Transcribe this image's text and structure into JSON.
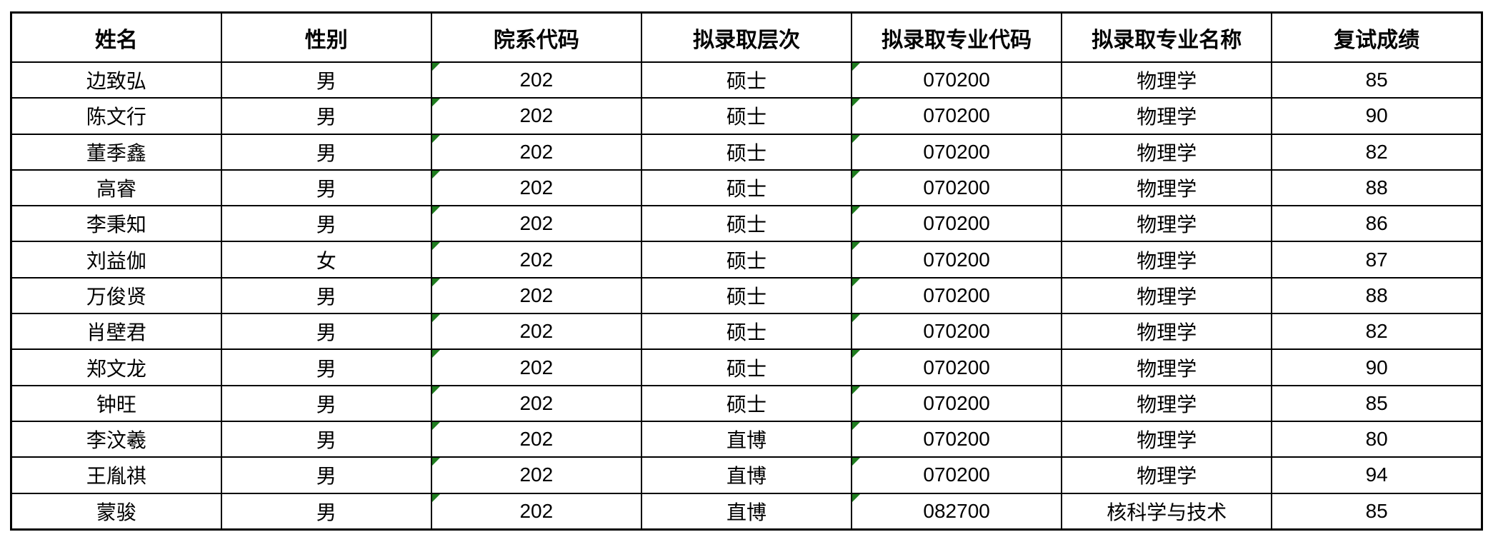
{
  "table": {
    "columns": [
      {
        "key": "name",
        "label": "姓名"
      },
      {
        "key": "gender",
        "label": "性别"
      },
      {
        "key": "dept_code",
        "label": "院系代码"
      },
      {
        "key": "level",
        "label": "拟录取层次"
      },
      {
        "key": "major_code",
        "label": "拟录取专业代码"
      },
      {
        "key": "major_name",
        "label": "拟录取专业名称"
      },
      {
        "key": "score",
        "label": "复试成绩"
      }
    ],
    "rows": [
      [
        "边致弘",
        "男",
        "202",
        "硕士",
        "070200",
        "物理学",
        "85"
      ],
      [
        "陈文行",
        "男",
        "202",
        "硕士",
        "070200",
        "物理学",
        "90"
      ],
      [
        "董季鑫",
        "男",
        "202",
        "硕士",
        "070200",
        "物理学",
        "82"
      ],
      [
        "高睿",
        "男",
        "202",
        "硕士",
        "070200",
        "物理学",
        "88"
      ],
      [
        "李秉知",
        "男",
        "202",
        "硕士",
        "070200",
        "物理学",
        "86"
      ],
      [
        "刘益伽",
        "女",
        "202",
        "硕士",
        "070200",
        "物理学",
        "87"
      ],
      [
        "万俊贤",
        "男",
        "202",
        "硕士",
        "070200",
        "物理学",
        "88"
      ],
      [
        "肖壁君",
        "男",
        "202",
        "硕士",
        "070200",
        "物理学",
        "82"
      ],
      [
        "郑文龙",
        "男",
        "202",
        "硕士",
        "070200",
        "物理学",
        "90"
      ],
      [
        "钟旺",
        "男",
        "202",
        "硕士",
        "070200",
        "物理学",
        "85"
      ],
      [
        "李汶羲",
        "男",
        "202",
        "直博",
        "070200",
        "物理学",
        "80"
      ],
      [
        "王胤祺",
        "男",
        "202",
        "直博",
        "070200",
        "物理学",
        "94"
      ],
      [
        "蒙骏",
        "男",
        "202",
        "直博",
        "082700",
        "核科学与技术",
        "85"
      ]
    ],
    "text_format_flag_columns": [
      2,
      4
    ],
    "flag_color": "#1f7d1f",
    "border_color": "#000000",
    "background_color": "#ffffff"
  }
}
